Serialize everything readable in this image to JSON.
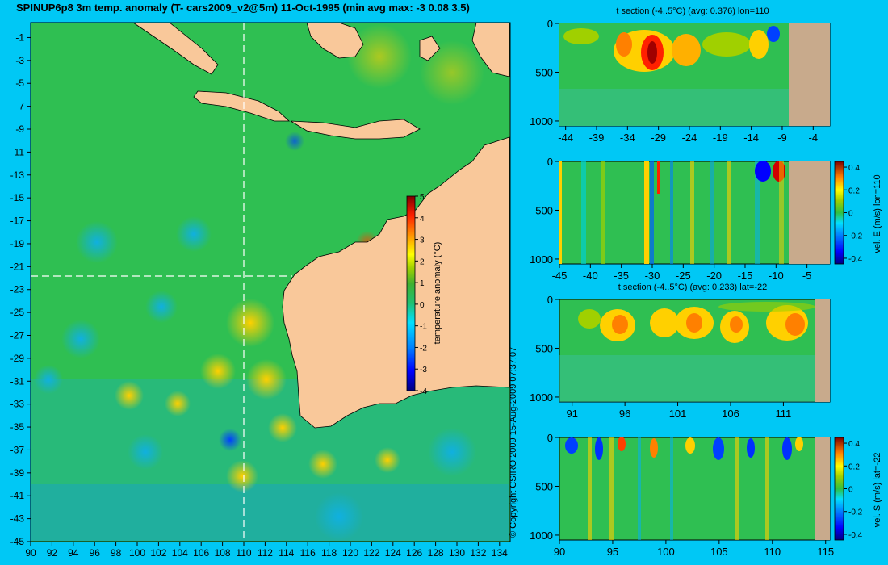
{
  "header": {
    "title": "SPINUP6p8 3m temp. anomaly (T- cars2009_v2@5m) 11-Oct-1995 (min avg max: -3 0.08 3.5)"
  },
  "copyright": "© Copyright CSIRO 2009   15-Aug-2009 07:37:07",
  "colors": {
    "background": "#00c8f5",
    "land": "#f9c89a",
    "section_land": "#c8aa8c",
    "colormap": [
      "#00007f",
      "#0000ff",
      "#0080ff",
      "#00e0ff",
      "#20c070",
      "#40b030",
      "#a0d000",
      "#ffff00",
      "#ff9000",
      "#ff2000",
      "#7f0000"
    ]
  },
  "chart_data": [
    {
      "type": "heatmap",
      "name": "map",
      "title": "SPINUP6p8 3m temp. anomaly (T- cars2009_v2@5m) 11-Oct-1995 (min avg max: -3 0.08 3.5)",
      "x_ticks": [
        "90",
        "92",
        "94",
        "96",
        "98",
        "100",
        "102",
        "104",
        "106",
        "108",
        "110",
        "112",
        "114",
        "116",
        "118",
        "120",
        "122",
        "124",
        "126",
        "128",
        "130",
        "132",
        "134"
      ],
      "y_ticks": [
        "-1",
        "-3",
        "-5",
        "-7",
        "-9",
        "-11",
        "-13",
        "-15",
        "-17",
        "-19",
        "-21",
        "-23",
        "-25",
        "-27",
        "-29",
        "-31",
        "-33",
        "-35",
        "-37",
        "-39",
        "-41",
        "-43",
        "-45"
      ],
      "xlim": [
        90,
        135
      ],
      "ylim": [
        -45,
        0.3
      ],
      "section_lon": 110,
      "section_lat": -22,
      "colorbar": {
        "label": "temperature anomaly (°C)",
        "ticks": [
          "5",
          "4",
          "3",
          "2",
          "1",
          "0",
          "-1",
          "-2",
          "-3",
          "-4"
        ],
        "range": [
          -4,
          5
        ]
      }
    },
    {
      "type": "heatmap",
      "name": "section-t-lon",
      "title": "t section (-4..5°C) (avg: 0.376) lon=110",
      "x_ticks": [
        "-44",
        "-39",
        "-34",
        "-29",
        "-24",
        "-19",
        "-14",
        "-9",
        "-4"
      ],
      "y_ticks": [
        "0",
        "500",
        "1000"
      ],
      "xlim": [
        -45,
        -1.3
      ],
      "ylim": [
        1050,
        0
      ]
    },
    {
      "type": "heatmap",
      "name": "section-u-lon",
      "title": "",
      "x_ticks": [
        "-45",
        "-40",
        "-35",
        "-30",
        "-25",
        "-20",
        "-15",
        "-10",
        "-5"
      ],
      "y_ticks": [
        "0",
        "500",
        "1000"
      ],
      "xlim": [
        -45,
        -1.3
      ],
      "ylim": [
        1050,
        0
      ],
      "colorbar": {
        "label": "vel. E (m/s) lon=110",
        "ticks": [
          "0.4",
          "0.2",
          "0",
          "-0.2",
          "-0.4"
        ],
        "range": [
          -0.45,
          0.45
        ]
      }
    },
    {
      "type": "heatmap",
      "name": "section-t-lat",
      "title": "t section (-4..5°C) (avg: 0.233) lat=-22",
      "x_ticks": [
        "91",
        "96",
        "101",
        "106",
        "111"
      ],
      "y_ticks": [
        "0",
        "500",
        "1000"
      ],
      "xlim": [
        89.8,
        115.4
      ],
      "ylim": [
        1050,
        0
      ]
    },
    {
      "type": "heatmap",
      "name": "section-v-lat",
      "title": "",
      "x_ticks": [
        "90",
        "95",
        "100",
        "105",
        "110",
        "115"
      ],
      "y_ticks": [
        "0",
        "500",
        "1000"
      ],
      "xlim": [
        90,
        115.4
      ],
      "ylim": [
        1050,
        0
      ],
      "colorbar": {
        "label": "vel. S (m/s) lat=-22",
        "ticks": [
          "0.4",
          "0.2",
          "0",
          "-0.2",
          "-0.4"
        ],
        "range": [
          -0.45,
          0.45
        ]
      }
    }
  ]
}
